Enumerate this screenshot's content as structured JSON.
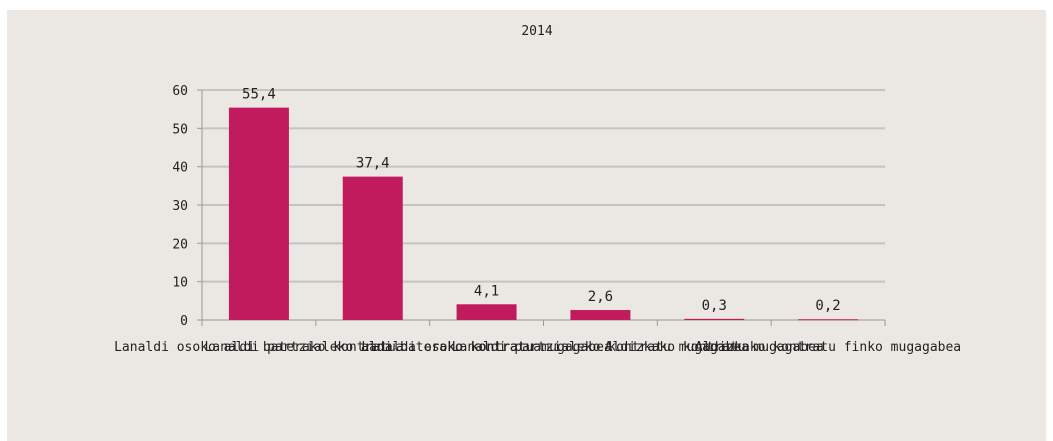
{
  "chart_data": {
    "type": "bar",
    "title": "2014",
    "categories": [
      "Lanaldi osoko aldi baterako kontratua",
      "Lanaldi partzialeko aldi baterako kontratua",
      "Lanaldi osoko kontratu mugagabea",
      "Lanaldi partzialeko kontratu mugagabea",
      "Aldizkako kontratu mugagabea",
      "Aldizkako kontratu finko mugagabea"
    ],
    "values": [
      55.4,
      37.4,
      4.1,
      2.6,
      0.3,
      0.2
    ],
    "value_labels": [
      "55,4",
      "37,4",
      "4,1",
      "2,6",
      "0,3",
      "0,2"
    ],
    "ylim": [
      0,
      60
    ],
    "yticks": [
      "0",
      "10",
      "20",
      "30",
      "40",
      "50",
      "60"
    ],
    "grid": true,
    "bar_color": "#c11b5e",
    "grid_color": "#c4c4c4",
    "background_color": "#ebe7e2"
  }
}
